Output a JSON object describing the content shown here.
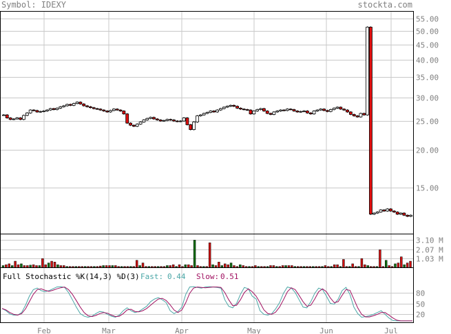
{
  "header": {
    "symbol": "Symbol: IDEXY",
    "brand": "stockta.com"
  },
  "price_panel": {
    "y_ticks": [
      "55.00",
      "50.00",
      "45.00",
      "40.00",
      "35.00",
      "30.00",
      "25.00",
      "20.00",
      "15.00"
    ]
  },
  "volume_panel": {
    "ticks": [
      "3.10 M",
      "2.07 M",
      "1.03 M"
    ]
  },
  "stoch_panel": {
    "title": "Full Stochastic %K(14,3) %D(3)",
    "fast_label": "Fast:",
    "fast_value": "0.44",
    "slow_label": "Slow:",
    "slow_value": "0.51",
    "ticks": [
      "80",
      "50",
      "20"
    ],
    "colors": {
      "fast": "#4aa6a6",
      "slow": "#a01060"
    }
  },
  "x_axis": {
    "months": [
      "Feb",
      "Mar",
      "Apr",
      "May",
      "Jun",
      "Jul"
    ]
  },
  "colors": {
    "up": "#ffffff",
    "down": "#e01010",
    "vol_up": "#107010",
    "vol_down": "#d01010",
    "grid": "#c8c8c8"
  },
  "chart_data": [
    {
      "type": "candlestick",
      "title": "Symbol: IDEXY",
      "y_scale": "log",
      "ylim": [
        10.5,
        58
      ],
      "y_ticks": [
        55,
        50,
        45,
        40,
        35,
        30,
        25,
        20,
        15
      ],
      "x_labels": [
        "Feb",
        "Mar",
        "Apr",
        "May",
        "Jun",
        "Jul"
      ],
      "close_by_day": [
        26.2,
        25.6,
        25.3,
        25.4,
        25.6,
        25.3,
        26.1,
        26.6,
        27.2,
        27.1,
        26.8,
        26.9,
        27.0,
        27.2,
        27.5,
        27.3,
        27.6,
        27.9,
        28.1,
        28.4,
        28.2,
        28.6,
        28.9,
        28.5,
        28.1,
        27.9,
        27.7,
        27.5,
        27.4,
        27.2,
        27.0,
        26.8,
        27.1,
        27.4,
        27.2,
        27.0,
        26.4,
        24.6,
        24.2,
        24.0,
        24.4,
        24.8,
        25.2,
        25.5,
        25.7,
        25.4,
        25.2,
        25.0,
        25.1,
        25.3,
        25.2,
        25.0,
        24.9,
        25.0,
        25.6,
        24.3,
        23.4,
        24.8,
        26.0,
        26.2,
        26.5,
        26.7,
        27.0,
        26.8,
        27.2,
        27.5,
        27.8,
        28.0,
        28.2,
        28.0,
        27.6,
        27.4,
        27.3,
        27.2,
        26.4,
        27.0,
        27.3,
        27.5,
        27.0,
        26.5,
        26.3,
        26.8,
        27.0,
        27.2,
        27.1,
        27.4,
        27.3,
        27.0,
        26.8,
        26.9,
        27.0,
        26.6,
        26.4,
        27.0,
        27.2,
        27.4,
        27.1,
        26.9,
        27.3,
        27.6,
        27.8,
        27.4,
        27.2,
        26.8,
        26.3,
        26.0,
        25.8,
        26.5,
        26.2,
        51.5,
        12.2,
        12.3,
        12.4,
        12.6,
        12.5,
        12.7,
        12.5,
        12.4,
        12.2,
        12.3,
        12.1,
        12.0,
        12.1
      ]
    },
    {
      "type": "bar",
      "title": "Volume",
      "y_ticks": [
        "3.10 M",
        "2.07 M",
        "1.03 M"
      ],
      "values_m": [
        0.2,
        0.3,
        0.4,
        0.2,
        0.7,
        0.3,
        0.4,
        0.2,
        0.2,
        0.25,
        0.3,
        0.2,
        0.2,
        1.0,
        0.3,
        0.5,
        0.7,
        0.6,
        0.3,
        0.2,
        0.2,
        0.1,
        0.1,
        0.1,
        0.1,
        0.1,
        0.1,
        0.1,
        0.1,
        0.1,
        0.1,
        0.1,
        0.15,
        0.2,
        0.2,
        0.2,
        0.2,
        0.2,
        0.1,
        0.1,
        0.1,
        0.1,
        0.1,
        0.1,
        0.8,
        0.2,
        0.5,
        0.1,
        0.1,
        0.1,
        0.1,
        0.1,
        0.1,
        0.1,
        0.2,
        0.2,
        0.3,
        0.1,
        0.3,
        0.1,
        0.3,
        0.3,
        0.2,
        3.1,
        0.2,
        0.1,
        0.1,
        0.1,
        2.8,
        0.3,
        0.2,
        0.6,
        0.2,
        0.4,
        0.3,
        0.5,
        0.2,
        0.1,
        0.3,
        0.2,
        0.1,
        0.1,
        0.1,
        0.2,
        0.1,
        0.1,
        0.1,
        0.1,
        0.2,
        0.2,
        0.1,
        0.1,
        0.2,
        0.2,
        0.2,
        0.2,
        0.1,
        0.1,
        0.1,
        0.1,
        0.1,
        0.1,
        0.1,
        0.1,
        0.1,
        0.1,
        0.2,
        0.1,
        0.1,
        0.3,
        0.3,
        0.1,
        0.9,
        0.1,
        0.1,
        0.4,
        0.1,
        0.1,
        1.0,
        0.3,
        0.2,
        0.1,
        0.1,
        0.1,
        2.0,
        0.1,
        0.8,
        0.2,
        0.1,
        0.4,
        0.5,
        1.2,
        0.3,
        0.5,
        0.7
      ]
    },
    {
      "type": "line",
      "title": "Full Stochastic %K(14,3) %D(3)",
      "ylim": [
        0,
        100
      ],
      "y_ticks": [
        80,
        50,
        20
      ],
      "series": [
        {
          "name": "Fast",
          "values": [
            36,
            30,
            21,
            18,
            18,
            25,
            45,
            70,
            88,
            92,
            85,
            82,
            85,
            90,
            95,
            96,
            94,
            80,
            60,
            40,
            22,
            15,
            12,
            15,
            22,
            28,
            26,
            20,
            15,
            12,
            18,
            30,
            38,
            30,
            25,
            28,
            35,
            42,
            55,
            62,
            66,
            60,
            52,
            30,
            22,
            28,
            40,
            75,
            95,
            96,
            94,
            92,
            95,
            96,
            95,
            94,
            92,
            60,
            42,
            38,
            50,
            75,
            94,
            90,
            70,
            62,
            30,
            20,
            18,
            22,
            35,
            52,
            78,
            95,
            92,
            80,
            60,
            40,
            38,
            55,
            78,
            92,
            88,
            70,
            50,
            48,
            62,
            85,
            94,
            75,
            40,
            22,
            12,
            14,
            16,
            20,
            25,
            30,
            20,
            10,
            3,
            2,
            2,
            2,
            2,
            2
          ]
        },
        {
          "name": "Slow",
          "values": [
            36,
            32,
            25,
            20,
            18,
            22,
            35,
            55,
            75,
            88,
            90,
            86,
            83,
            86,
            90,
            93,
            95,
            88,
            75,
            58,
            40,
            25,
            16,
            14,
            17,
            22,
            25,
            23,
            18,
            14,
            15,
            22,
            32,
            34,
            28,
            27,
            30,
            36,
            45,
            54,
            62,
            64,
            58,
            46,
            32,
            25,
            32,
            52,
            78,
            92,
            95,
            94,
            93,
            94,
            95,
            95,
            94,
            80,
            60,
            44,
            45,
            60,
            80,
            90,
            82,
            70,
            52,
            32,
            22,
            20,
            26,
            40,
            60,
            82,
            93,
            88,
            72,
            55,
            42,
            45,
            62,
            82,
            90,
            82,
            65,
            52,
            55,
            72,
            88,
            86,
            62,
            38,
            20,
            13,
            13,
            16,
            20,
            25,
            25,
            18,
            10,
            4,
            2,
            2,
            2,
            2
          ]
        }
      ]
    }
  ]
}
